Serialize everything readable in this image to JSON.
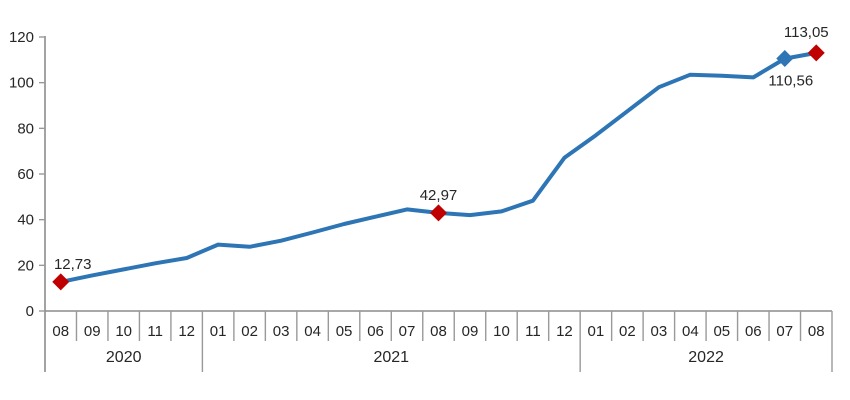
{
  "chart_data": {
    "type": "line",
    "title": "",
    "x": [
      "2020-08",
      "2020-09",
      "2020-10",
      "2020-11",
      "2020-12",
      "2021-01",
      "2021-02",
      "2021-03",
      "2021-04",
      "2021-05",
      "2021-06",
      "2021-07",
      "2021-08",
      "2021-09",
      "2021-10",
      "2021-11",
      "2021-12",
      "2022-01",
      "2022-02",
      "2022-03",
      "2022-04",
      "2022-05",
      "2022-06",
      "2022-07",
      "2022-08"
    ],
    "month_labels": [
      "08",
      "09",
      "10",
      "11",
      "12",
      "01",
      "02",
      "03",
      "04",
      "05",
      "06",
      "07",
      "08",
      "09",
      "10",
      "11",
      "12",
      "01",
      "02",
      "03",
      "04",
      "05",
      "06",
      "07",
      "08"
    ],
    "year_groups": [
      {
        "label": "2020",
        "months": 5
      },
      {
        "label": "2021",
        "months": 12
      },
      {
        "label": "2022",
        "months": 8
      }
    ],
    "values": [
      12.73,
      15.6,
      18.2,
      20.9,
      23.2,
      29.1,
      28.1,
      30.8,
      34.4,
      38.1,
      41.3,
      44.5,
      42.97,
      42.0,
      43.6,
      48.3,
      67.1,
      77.0,
      87.5,
      98.0,
      103.5,
      103.0,
      102.3,
      110.56,
      113.05
    ],
    "yticks": [
      0,
      20,
      40,
      60,
      80,
      100,
      120
    ],
    "ylim": [
      0,
      120
    ],
    "grid": false,
    "legend_position": "none",
    "annotations": [
      {
        "x": "2020-08",
        "index": 0,
        "label": "12,73",
        "value": 12.73,
        "marker": "diamond",
        "marker_color": "#c00000",
        "label_pos": "above-right"
      },
      {
        "x": "2021-08",
        "index": 12,
        "label": "42,97",
        "value": 42.97,
        "marker": "diamond",
        "marker_color": "#c00000",
        "label_pos": "above"
      },
      {
        "x": "2022-07",
        "index": 23,
        "label": "110,56",
        "value": 110.56,
        "marker": "diamond",
        "marker_color": "#2e75b6",
        "label_pos": "below-right"
      },
      {
        "x": "2022-08",
        "index": 24,
        "label": "113,05",
        "value": 113.05,
        "marker": "diamond",
        "marker_color": "#c00000",
        "label_pos": "above-left"
      }
    ],
    "colors": {
      "line": "#2e75b6",
      "marker_red": "#c00000",
      "marker_blue": "#2e75b6",
      "axis": "#8c8c8c",
      "tick": "#999999",
      "text": "#262626"
    }
  }
}
